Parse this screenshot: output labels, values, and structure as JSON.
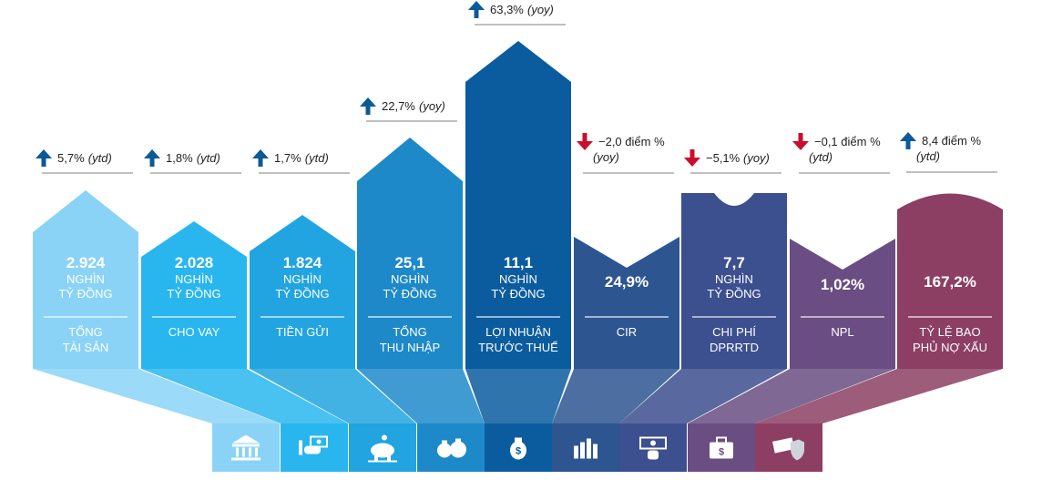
{
  "chart_data": {
    "type": "table",
    "items": [
      {
        "value": "2.924",
        "unit": [
          "NGHÌN",
          "TỶ ĐỒNG"
        ],
        "label": [
          "TỔNG",
          "TÀI SẢN"
        ],
        "change_dir": "up",
        "change": [
          "5,7%",
          "(ytd)"
        ],
        "icon": "bank-icon",
        "color": "#8ad3f7"
      },
      {
        "value": "2.028",
        "unit": [
          "NGHÌN",
          "TỶ ĐỒNG"
        ],
        "label": [
          "CHO VAY"
        ],
        "change_dir": "up",
        "change": [
          "1,8%",
          "(ytd)"
        ],
        "icon": "hand-money-icon",
        "color": "#29b6ee"
      },
      {
        "value": "1.824",
        "unit": [
          "NGHÌN",
          "TỶ ĐỒNG"
        ],
        "label": [
          "TIỀN GỬI"
        ],
        "change_dir": "up",
        "change": [
          "1,7%",
          "(ytd)"
        ],
        "icon": "piggy-bank-icon",
        "color": "#21a4e0"
      },
      {
        "value": "25,1",
        "unit": [
          "NGHÌN",
          "TỶ ĐỒNG"
        ],
        "label": [
          "TỔNG",
          "THU NHẬP"
        ],
        "change_dir": "up",
        "change": [
          "22,7%",
          "(yoy)"
        ],
        "icon": "money-bags-icon",
        "color": "#1d89c9"
      },
      {
        "value": "11,1",
        "unit": [
          "NGHÌN",
          "TỶ ĐỒNG"
        ],
        "label": [
          "LỢI NHUẬN",
          "TRƯỚC THUẾ"
        ],
        "change_dir": "up",
        "change": [
          "63,3%",
          "(yoy)"
        ],
        "icon": "money-bag-icon",
        "color": "#0a5c9e"
      },
      {
        "value": "24,9%",
        "unit": [],
        "label": [
          "CIR"
        ],
        "change_dir": "down",
        "change": [
          "−2,0 điểm %",
          "(yoy)"
        ],
        "icon": "bar-chart-icon",
        "color": "#2d5590"
      },
      {
        "value": "7,7",
        "unit": [
          "NGHÌN",
          "TỶ ĐỒNG"
        ],
        "label": [
          "CHI PHÍ",
          "DPRRTD"
        ],
        "change_dir": "down",
        "change": [
          "−5,1%",
          "(yoy)"
        ],
        "icon": "cash-hand-icon",
        "color": "#3c4f8e"
      },
      {
        "value": "1,02%",
        "unit": [],
        "label": [
          "NPL"
        ],
        "change_dir": "down",
        "change": [
          "−0,1 điểm %",
          "(ytd)"
        ],
        "icon": "briefcase-money-icon",
        "color": "#6a4d82"
      },
      {
        "value": "167,2%",
        "unit": [],
        "label": [
          "TỶ LỆ BAO",
          "PHỦ NỢ XẤU"
        ],
        "change_dir": "up",
        "change": [
          "8,4 điểm %",
          "(ytd)"
        ],
        "icon": "shield-money-icon",
        "color": "#8c3f63"
      }
    ],
    "colors": {
      "arrow_up": "#0b5a98",
      "arrow_down": "#c8102e",
      "text_dark": "#222222"
    }
  }
}
